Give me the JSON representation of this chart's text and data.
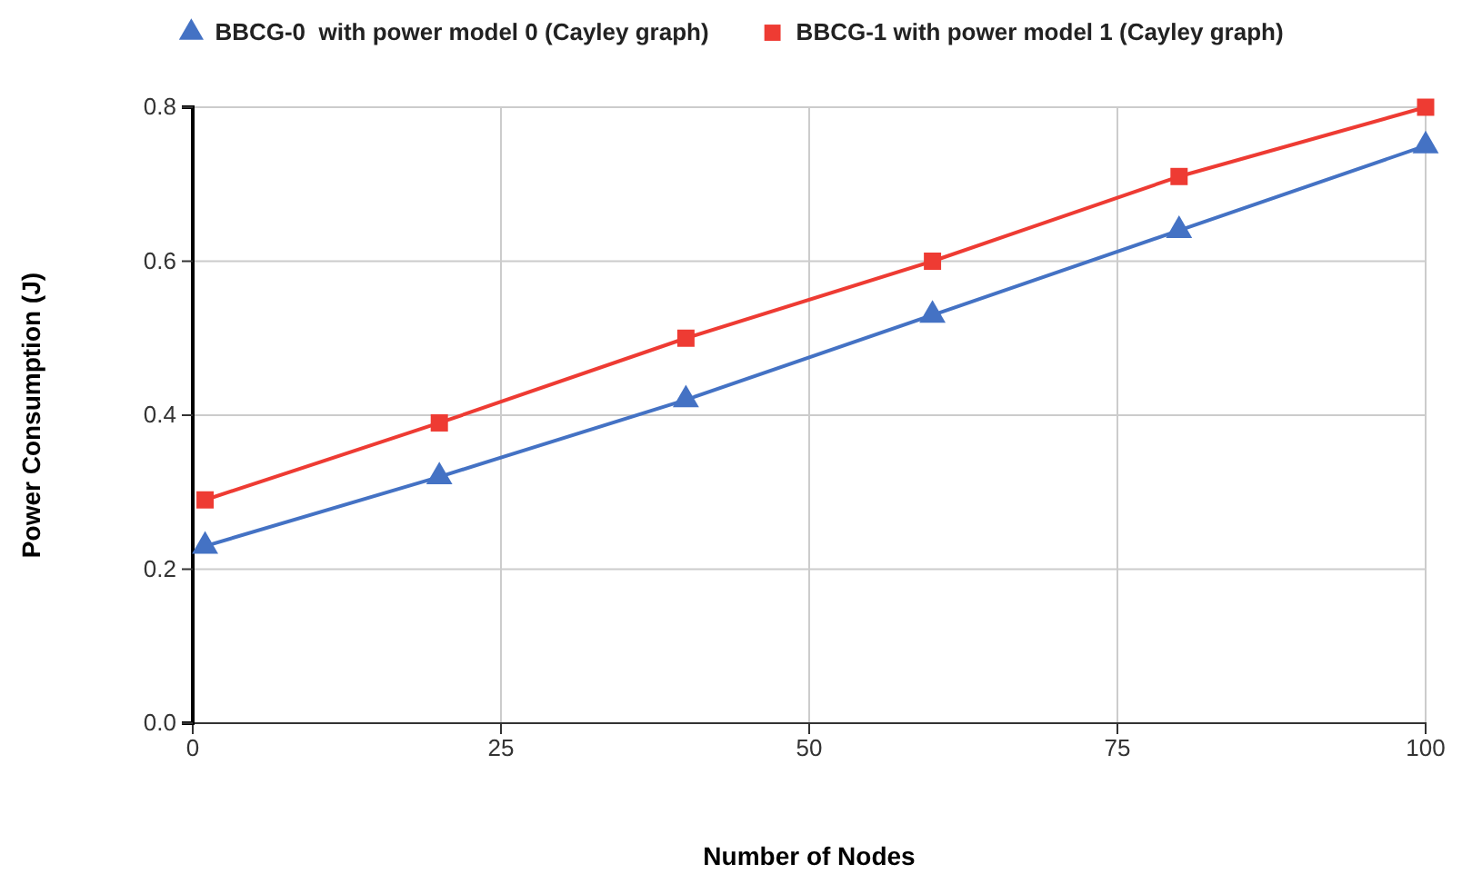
{
  "chart_data": {
    "type": "line",
    "xlabel": "Number of Nodes",
    "ylabel": "Power Consumption (J)",
    "xlim": [
      0,
      100
    ],
    "xticks": [
      0,
      25,
      50,
      75,
      100
    ],
    "ylim": [
      0,
      0.8
    ],
    "yticks": [
      {
        "value": 0,
        "label": "0.0"
      },
      0.2,
      0.4,
      0.6,
      0.8
    ],
    "grid": true,
    "legend": "top",
    "series": [
      {
        "name": "BBCG-0  with power model 0 (Cayley graph)",
        "color": "#4472c4",
        "marker": "triangle",
        "x": [
          1,
          20,
          40,
          60,
          80,
          100
        ],
        "values": [
          0.23,
          0.32,
          0.42,
          0.53,
          0.64,
          0.75
        ]
      },
      {
        "name": "BBCG-1 with power model 1 (Cayley graph)",
        "color": "#ee3b33",
        "marker": "square",
        "x": [
          1,
          20,
          40,
          60,
          80,
          100
        ],
        "values": [
          0.29,
          0.39,
          0.5,
          0.6,
          0.71,
          0.8
        ]
      }
    ]
  }
}
